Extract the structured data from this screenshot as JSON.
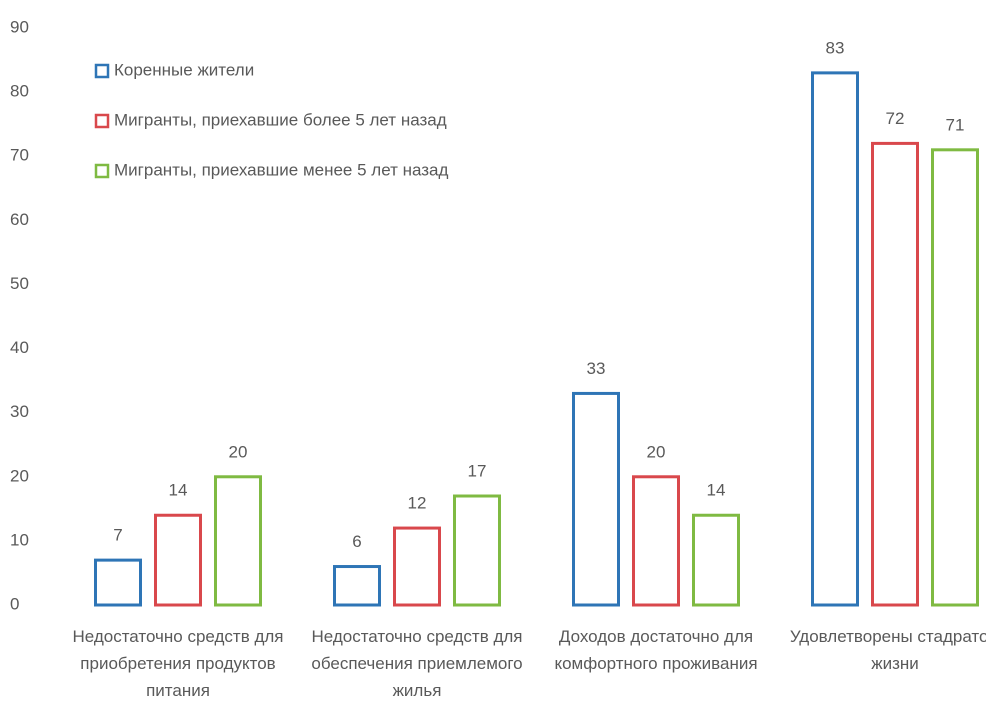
{
  "chart_data": {
    "type": "bar",
    "categories": [
      "Недостаточно средств для приобретения продуктов питания",
      "Недостаточно средств для обеспечения приемлемого жилья",
      "Доходов достаточно для комфортного проживания",
      "Удовлетворены стадратом жизни"
    ],
    "series": [
      {
        "name": "Коренные жители",
        "color": "#2e75b6",
        "values": [
          7,
          6,
          33,
          83
        ]
      },
      {
        "name": "Мигранты, приехавшие более 5 лет назад",
        "color": "#d9484c",
        "values": [
          14,
          12,
          20,
          72
        ]
      },
      {
        "name": "Мигранты, приехавшие менее 5 лет назад",
        "color": "#7fba42",
        "values": [
          20,
          17,
          14,
          71
        ]
      }
    ],
    "ylim": [
      0,
      90
    ],
    "yticks": [
      0,
      10,
      20,
      30,
      40,
      50,
      60,
      70,
      80,
      90
    ],
    "grid": false,
    "legend": "top-left",
    "data_labels": true
  }
}
